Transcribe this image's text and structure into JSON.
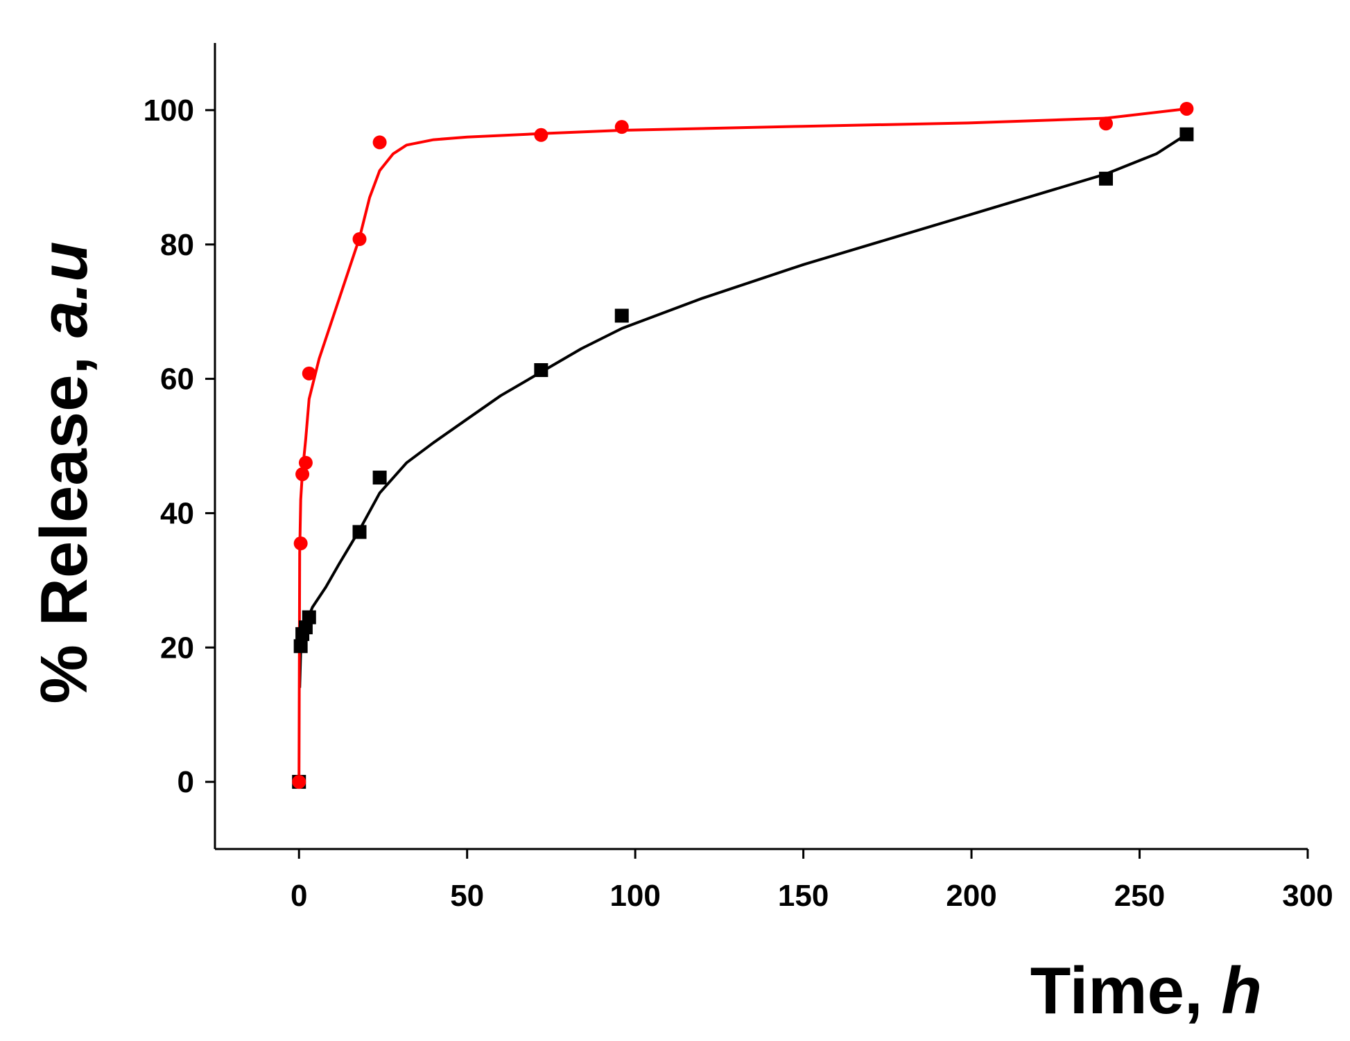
{
  "chart_data": {
    "type": "line",
    "xlabel": {
      "main": "Time, ",
      "italic": "h"
    },
    "ylabel": {
      "main": "% Release, ",
      "italic": "a.u"
    },
    "xlim": [
      -25,
      300
    ],
    "ylim": [
      -10,
      110
    ],
    "xticks": [
      0,
      50,
      100,
      150,
      200,
      250,
      300
    ],
    "yticks": [
      0,
      20,
      40,
      60,
      80,
      100
    ],
    "xtick_labels": [
      "0",
      "50",
      "100",
      "150",
      "200",
      "250",
      "300"
    ],
    "ytick_labels": [
      "0",
      "20",
      "40",
      "60",
      "80",
      "100"
    ],
    "grid": false,
    "legend": "none",
    "series": [
      {
        "marker": "circle",
        "color": "#ff0000",
        "x": [
          0,
          0.5,
          1,
          2,
          3,
          18,
          24,
          72,
          96,
          240,
          264
        ],
        "y": [
          0,
          35.5,
          45.8,
          47.5,
          60.8,
          80.8,
          95.2,
          96.3,
          97.5,
          98.0,
          100.2
        ],
        "fit": {
          "x": [
            0,
            0.2,
            0.5,
            1,
            2,
            3,
            6,
            10,
            14,
            18,
            21,
            24,
            28,
            32,
            40,
            50,
            72,
            96,
            150,
            200,
            240,
            264
          ],
          "y": [
            0,
            34,
            42,
            46,
            51,
            57,
            63,
            69,
            75,
            81,
            87,
            91,
            93.5,
            94.8,
            95.6,
            96.0,
            96.5,
            97.0,
            97.6,
            98.1,
            98.8,
            100.2
          ]
        }
      },
      {
        "marker": "square",
        "color": "#000000",
        "x": [
          0,
          0.5,
          1,
          2,
          3,
          18,
          24,
          72,
          96,
          240,
          264
        ],
        "y": [
          0,
          20.2,
          22.0,
          23.0,
          24.5,
          37.2,
          45.3,
          61.3,
          69.4,
          89.8,
          96.4
        ],
        "fit": {
          "x": [
            0.2,
            0.5,
            1,
            2,
            4,
            8,
            12,
            18,
            24,
            32,
            40,
            50,
            60,
            72,
            84,
            96,
            120,
            150,
            180,
            210,
            240,
            255,
            264
          ],
          "y": [
            14,
            19.5,
            21.8,
            23.5,
            26,
            29,
            32.5,
            37.5,
            43,
            47.5,
            50.5,
            54,
            57.5,
            61,
            64.5,
            67.5,
            72,
            77,
            81.5,
            86,
            90.5,
            93.5,
            96.4
          ]
        }
      }
    ]
  }
}
